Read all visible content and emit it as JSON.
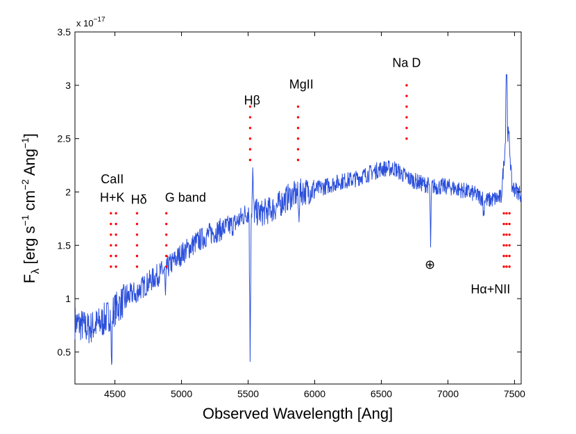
{
  "chart_data": {
    "type": "line",
    "title": "",
    "xlabel": "Observed Wavelength [Ang]",
    "ylabel_parts": {
      "f": "F",
      "sub": "λ",
      "a": " [erg s",
      "e1": "−1",
      "b": " cm",
      "e2": "−2",
      "c": " Ang",
      "e3": "−1",
      "d": "]"
    },
    "y_multiplier": {
      "base": "x 10",
      "exp": "−17"
    },
    "xlim": [
      4200,
      7550
    ],
    "ylim": [
      0.2,
      3.5
    ],
    "grid": false,
    "legend": "none",
    "x_ticks": [
      4500,
      5000,
      5500,
      6000,
      6500,
      7000,
      7500
    ],
    "y_ticks": [
      0.5,
      1,
      1.5,
      2,
      2.5,
      3,
      3.5
    ],
    "y_tick_labels": [
      "0.5",
      "1",
      "1.5",
      "2",
      "2.5",
      "3",
      "3.5"
    ],
    "line_color": "#2b4fdb",
    "marker_color": "#ff0000",
    "spectrum": {
      "continuum_knots": [
        [
          4200,
          0.78
        ],
        [
          4300,
          0.72
        ],
        [
          4400,
          0.78
        ],
        [
          4500,
          0.9
        ],
        [
          4600,
          1.02
        ],
        [
          4700,
          1.1
        ],
        [
          4800,
          1.2
        ],
        [
          4900,
          1.3
        ],
        [
          5000,
          1.42
        ],
        [
          5100,
          1.52
        ],
        [
          5200,
          1.6
        ],
        [
          5300,
          1.65
        ],
        [
          5400,
          1.7
        ],
        [
          5500,
          1.82
        ],
        [
          5600,
          1.8
        ],
        [
          5700,
          1.85
        ],
        [
          5800,
          1.95
        ],
        [
          5900,
          2.0
        ],
        [
          6000,
          2.02
        ],
        [
          6100,
          2.06
        ],
        [
          6200,
          2.1
        ],
        [
          6300,
          2.12
        ],
        [
          6400,
          2.17
        ],
        [
          6500,
          2.22
        ],
        [
          6600,
          2.22
        ],
        [
          6700,
          2.13
        ],
        [
          6800,
          2.08
        ],
        [
          6900,
          2.05
        ],
        [
          7000,
          2.05
        ],
        [
          7100,
          2.02
        ],
        [
          7200,
          1.98
        ],
        [
          7300,
          1.92
        ],
        [
          7400,
          1.95
        ],
        [
          7440,
          2.6
        ],
        [
          7460,
          2.5
        ],
        [
          7480,
          2.05
        ],
        [
          7550,
          1.98
        ]
      ],
      "features": [
        [
          4475,
          -0.55
        ],
        [
          4660,
          -0.12
        ],
        [
          4880,
          -0.3
        ],
        [
          5515,
          -1.35
        ],
        [
          5535,
          0.35
        ],
        [
          5880,
          -0.25
        ],
        [
          6870,
          -0.55
        ],
        [
          7440,
          1.0
        ],
        [
          7268,
          -0.18
        ]
      ]
    },
    "line_markers": [
      {
        "x": 4470,
        "y_top": 1.8,
        "y_bottom": 1.3
      },
      {
        "x": 4508,
        "y_top": 1.8,
        "y_bottom": 1.3
      },
      {
        "x": 4666,
        "y_top": 1.8,
        "y_bottom": 1.3
      },
      {
        "x": 4886,
        "y_top": 1.8,
        "y_bottom": 1.3
      },
      {
        "x": 5515,
        "y_top": 2.8,
        "y_bottom": 2.3
      },
      {
        "x": 5875,
        "y_top": 2.8,
        "y_bottom": 2.3
      },
      {
        "x": 6690,
        "y_top": 3.0,
        "y_bottom": 2.5
      },
      {
        "x": 7420,
        "y_top": 1.8,
        "y_bottom": 1.3
      },
      {
        "x": 7440,
        "y_top": 1.8,
        "y_bottom": 1.3
      },
      {
        "x": 7462,
        "y_top": 1.8,
        "y_bottom": 1.3
      }
    ],
    "annotations": [
      {
        "text": "CaII",
        "x": 4480,
        "y": 2.08
      },
      {
        "text": "H+K",
        "x": 4480,
        "y": 1.91
      },
      {
        "text": "Hδ",
        "x": 4680,
        "y": 1.89
      },
      {
        "text": "G band",
        "x": 5030,
        "y": 1.91
      },
      {
        "text": "Hβ",
        "x": 5530,
        "y": 2.82
      },
      {
        "text": "MgII",
        "x": 5900,
        "y": 2.97
      },
      {
        "text": "Na D",
        "x": 6690,
        "y": 3.17
      },
      {
        "text": "⊕",
        "x": 6865,
        "y": 1.28
      },
      {
        "text": "Hα+NII",
        "x": 7320,
        "y": 1.05
      }
    ]
  }
}
